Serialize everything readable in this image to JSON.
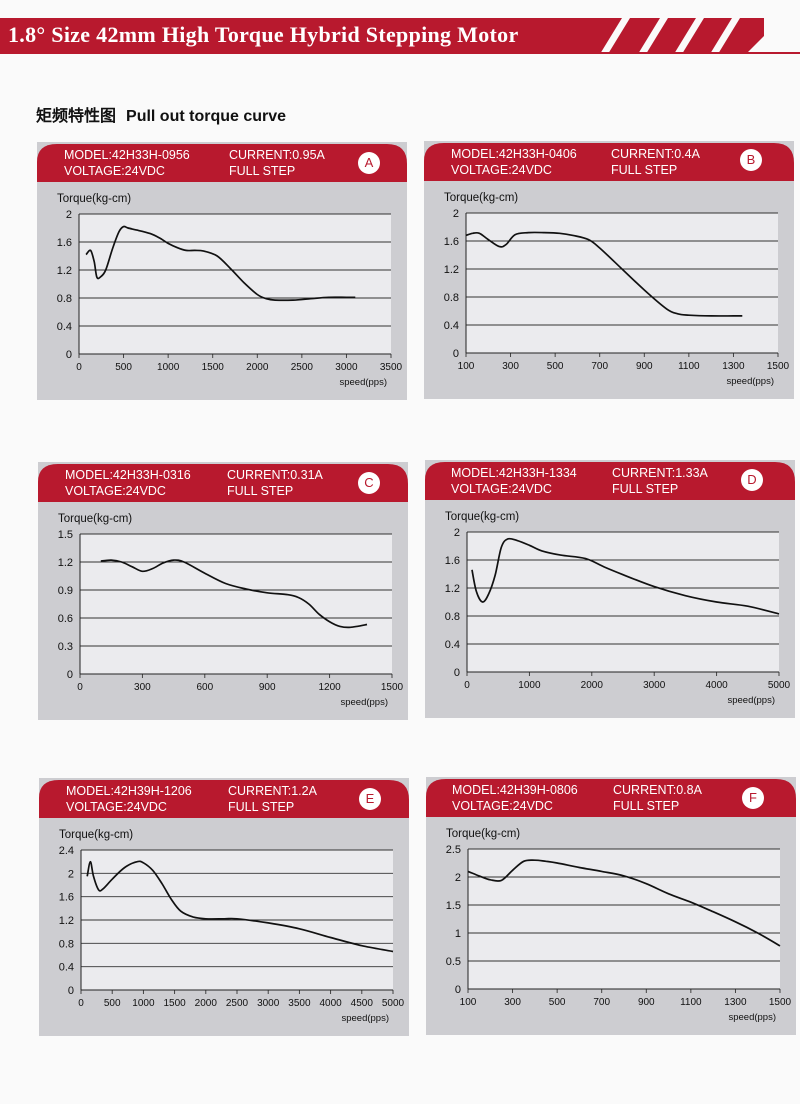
{
  "header": {
    "title": "1.8° Size 42mm High Torque Hybrid Stepping Motor",
    "color": "#b8192e"
  },
  "section": {
    "title_cn": "矩频特性图",
    "title_en": "Pull out torque curve"
  },
  "chart_data": [
    {
      "letter": "A",
      "model": "MODEL:42H33H-0956",
      "current": "CURRENT:0.95A",
      "voltage": "VOLTAGE:24VDC",
      "step": "FULL STEP",
      "type": "line",
      "ylabel": "Torque(kg-cm)",
      "xlabel": "speed(pps)",
      "xlim": [
        0,
        3500
      ],
      "ylim": [
        0,
        2
      ],
      "xticks": [
        0,
        500,
        1000,
        1500,
        2000,
        2500,
        3000,
        3500
      ],
      "yticks": [
        0,
        0.4,
        0.8,
        1.2,
        1.6,
        2
      ],
      "grid": true,
      "series": [
        {
          "x": [
            80,
            130,
            170,
            200,
            240,
            300,
            380,
            450,
            500,
            550,
            650,
            800,
            900,
            1000,
            1100,
            1200,
            1300,
            1400,
            1550,
            1700,
            1850,
            2000,
            2100,
            2200,
            2400,
            2600,
            2800,
            3000,
            3100
          ],
          "y": [
            1.42,
            1.48,
            1.32,
            1.1,
            1.1,
            1.2,
            1.52,
            1.75,
            1.82,
            1.8,
            1.77,
            1.72,
            1.66,
            1.58,
            1.52,
            1.48,
            1.48,
            1.47,
            1.4,
            1.22,
            1.02,
            0.85,
            0.79,
            0.77,
            0.77,
            0.79,
            0.81,
            0.81,
            0.81
          ]
        }
      ]
    },
    {
      "letter": "B",
      "model": "MODEL:42H33H-0406",
      "current": "CURRENT:0.4A",
      "voltage": "VOLTAGE:24VDC",
      "step": "FULL STEP",
      "type": "line",
      "ylabel": "Torque(kg-cm)",
      "xlabel": "speed(pps)",
      "xlim": [
        100,
        1500
      ],
      "ylim": [
        0,
        2
      ],
      "xticks": [
        100,
        300,
        500,
        700,
        900,
        1100,
        1300,
        1500
      ],
      "yticks": [
        0,
        0.4,
        0.8,
        1.2,
        1.6,
        2
      ],
      "grid": true,
      "series": [
        {
          "x": [
            100,
            130,
            160,
            200,
            250,
            280,
            320,
            380,
            450,
            520,
            580,
            650,
            700,
            800,
            900,
            1000,
            1050,
            1100,
            1200,
            1300,
            1340
          ],
          "y": [
            1.68,
            1.71,
            1.71,
            1.62,
            1.52,
            1.55,
            1.69,
            1.72,
            1.72,
            1.71,
            1.68,
            1.62,
            1.5,
            1.2,
            0.9,
            0.63,
            0.56,
            0.54,
            0.53,
            0.53,
            0.53
          ]
        }
      ]
    },
    {
      "letter": "C",
      "model": "MODEL:42H33H-0316",
      "current": "CURRENT:0.31A",
      "voltage": "VOLTAGE:24VDC",
      "step": "FULL STEP",
      "type": "line",
      "ylabel": "Torque(kg-cm)",
      "xlabel": "speed(pps)",
      "xlim": [
        0,
        1500
      ],
      "ylim": [
        0,
        1.5
      ],
      "xticks": [
        0,
        300,
        600,
        900,
        1200,
        1500
      ],
      "yticks": [
        0,
        0.3,
        0.6,
        0.9,
        1.2,
        1.5
      ],
      "grid": true,
      "series": [
        {
          "x": [
            100,
            150,
            200,
            250,
            300,
            350,
            400,
            450,
            500,
            600,
            700,
            800,
            900,
            1000,
            1050,
            1100,
            1150,
            1200,
            1250,
            1300,
            1380
          ],
          "y": [
            1.21,
            1.22,
            1.2,
            1.15,
            1.1,
            1.13,
            1.19,
            1.22,
            1.2,
            1.08,
            0.97,
            0.91,
            0.87,
            0.85,
            0.82,
            0.75,
            0.64,
            0.56,
            0.51,
            0.5,
            0.53
          ]
        }
      ]
    },
    {
      "letter": "D",
      "model": "MODEL:42H33H-1334",
      "current": "CURRENT:1.33A",
      "voltage": "VOLTAGE:24VDC",
      "step": "FULL STEP",
      "type": "line",
      "ylabel": "Torque(kg-cm)",
      "xlabel": "speed(pps)",
      "xlim": [
        0,
        5000
      ],
      "ylim": [
        0,
        2
      ],
      "xticks": [
        0,
        1000,
        2000,
        3000,
        4000,
        5000
      ],
      "yticks": [
        0,
        0.4,
        0.8,
        1.2,
        1.6,
        2
      ],
      "grid": true,
      "series": [
        {
          "x": [
            80,
            150,
            250,
            350,
            450,
            550,
            650,
            800,
            1000,
            1200,
            1500,
            1900,
            2200,
            2500,
            3000,
            3500,
            4000,
            4500,
            5000
          ],
          "y": [
            1.46,
            1.15,
            1.0,
            1.12,
            1.38,
            1.78,
            1.9,
            1.88,
            1.81,
            1.73,
            1.67,
            1.62,
            1.5,
            1.39,
            1.22,
            1.09,
            1.0,
            0.94,
            0.83
          ]
        }
      ]
    },
    {
      "letter": "E",
      "model": "MODEL:42H39H-1206",
      "current": "CURRENT:1.2A",
      "voltage": "VOLTAGE:24VDC",
      "step": "FULL STEP",
      "type": "line",
      "ylabel": "Torque(kg-cm)",
      "xlabel": "speed(pps)",
      "xlim": [
        0,
        5000
      ],
      "ylim": [
        0,
        2.4
      ],
      "xticks": [
        0,
        500,
        1000,
        1500,
        2000,
        2500,
        3000,
        3500,
        4000,
        4500,
        5000
      ],
      "yticks": [
        0,
        0.4,
        0.8,
        1.2,
        1.6,
        2,
        2.4
      ],
      "grid": true,
      "series": [
        {
          "x": [
            100,
            150,
            200,
            280,
            350,
            500,
            700,
            900,
            1000,
            1150,
            1300,
            1450,
            1600,
            1800,
            2000,
            2300,
            2500,
            3000,
            3500,
            4000,
            4500,
            5000
          ],
          "y": [
            1.95,
            2.2,
            1.95,
            1.72,
            1.73,
            1.9,
            2.1,
            2.2,
            2.18,
            2.05,
            1.82,
            1.55,
            1.35,
            1.25,
            1.22,
            1.22,
            1.22,
            1.15,
            1.05,
            0.9,
            0.76,
            0.66
          ]
        }
      ]
    },
    {
      "letter": "F",
      "model": "MODEL:42H39H-0806",
      "current": "CURRENT:0.8A",
      "voltage": "VOLTAGE:24VDC",
      "step": "FULL STEP",
      "type": "line",
      "ylabel": "Torque(kg-cm)",
      "xlabel": "speed(pps)",
      "xlim": [
        100,
        1500
      ],
      "ylim": [
        0,
        2.5
      ],
      "xticks": [
        100,
        300,
        500,
        700,
        900,
        1100,
        1300,
        1500
      ],
      "yticks": [
        0,
        0.5,
        1,
        1.5,
        2,
        2.5
      ],
      "grid": true,
      "series": [
        {
          "x": [
            100,
            150,
            200,
            250,
            300,
            350,
            400,
            450,
            500,
            600,
            700,
            800,
            900,
            1000,
            1100,
            1200,
            1300,
            1400,
            1500
          ],
          "y": [
            2.1,
            2.02,
            1.95,
            1.94,
            2.12,
            2.28,
            2.3,
            2.28,
            2.25,
            2.17,
            2.1,
            2.02,
            1.88,
            1.7,
            1.55,
            1.38,
            1.2,
            1.0,
            0.77
          ]
        }
      ]
    }
  ]
}
